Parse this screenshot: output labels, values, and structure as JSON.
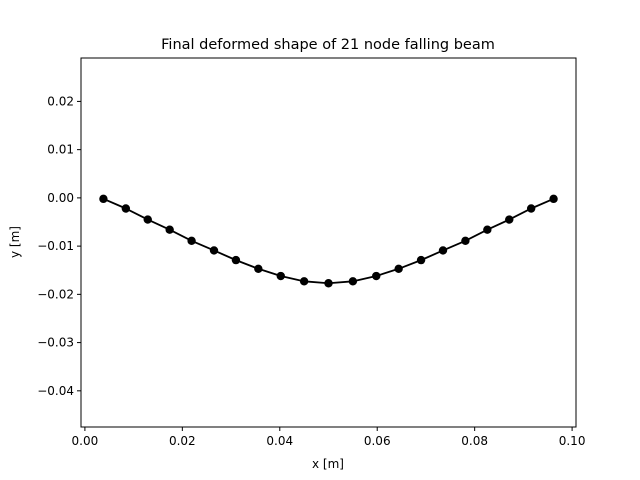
{
  "chart_data": {
    "type": "line",
    "title": "Final deformed shape of 21 node falling beam",
    "xlabel": "x [m]",
    "ylabel": "y [m]",
    "xlim": [
      -0.0008,
      0.1008
    ],
    "ylim": [
      -0.0475,
      0.029
    ],
    "xticks": [
      0.0,
      0.02,
      0.04,
      0.06,
      0.08,
      0.1
    ],
    "xtick_labels": [
      "0.00",
      "0.02",
      "0.04",
      "0.06",
      "0.08",
      "0.10"
    ],
    "yticks": [
      -0.04,
      -0.03,
      -0.02,
      -0.01,
      0.0,
      0.01,
      0.02
    ],
    "ytick_labels": [
      "−0.04",
      "−0.03",
      "−0.02",
      "−0.01",
      "0.00",
      "0.01",
      "0.02"
    ],
    "grid": false,
    "series": [
      {
        "color": "#000000",
        "marker": "circle",
        "x": [
          0.0038,
          0.0084,
          0.0129,
          0.0174,
          0.0219,
          0.0265,
          0.031,
          0.0356,
          0.0402,
          0.045,
          0.05,
          0.055,
          0.0598,
          0.0644,
          0.069,
          0.0735,
          0.0781,
          0.0826,
          0.0871,
          0.0916,
          0.0962
        ],
        "y": [
          -0.0002,
          -0.0022,
          -0.0045,
          -0.0066,
          -0.0089,
          -0.0109,
          -0.0129,
          -0.0147,
          -0.0162,
          -0.0173,
          -0.0177,
          -0.0173,
          -0.0162,
          -0.0147,
          -0.0129,
          -0.0109,
          -0.0089,
          -0.0066,
          -0.0045,
          -0.0022,
          -0.0002
        ]
      }
    ]
  }
}
